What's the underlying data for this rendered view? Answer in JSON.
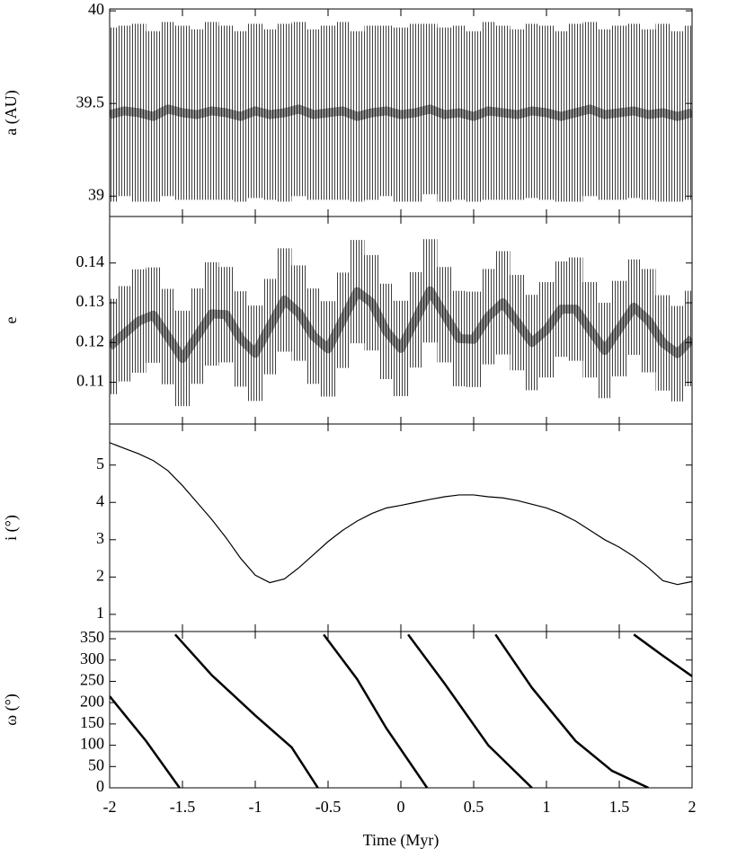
{
  "chart_data": [
    {
      "type": "errorbar",
      "ylabel": "a (AU)",
      "xlim": [
        -2,
        2
      ],
      "xticks": [
        -2,
        -1.5,
        -1,
        -0.5,
        0,
        0.5,
        1,
        1.5,
        2
      ],
      "ylim": [
        38.89,
        40.01
      ],
      "yticks": [
        39,
        39.5,
        40
      ],
      "series": [
        {
          "color": "#000000",
          "x": [
            -2,
            -1.9,
            -1.8,
            -1.7,
            -1.6,
            -1.5,
            -1.4,
            -1.3,
            -1.2,
            -1.1,
            -1,
            -0.9,
            -0.8,
            -0.7,
            -0.6,
            -0.5,
            -0.4,
            -0.3,
            -0.2,
            -0.1,
            0,
            0.1,
            0.2,
            0.3,
            0.4,
            0.5,
            0.6,
            0.7,
            0.8,
            0.9,
            1,
            1.1,
            1.2,
            1.3,
            1.4,
            1.5,
            1.6,
            1.7,
            1.8,
            1.9,
            2
          ],
          "values": [
            39.44,
            39.46,
            39.45,
            39.43,
            39.47,
            39.45,
            39.44,
            39.46,
            39.45,
            39.43,
            39.46,
            39.44,
            39.45,
            39.47,
            39.44,
            39.45,
            39.46,
            39.43,
            39.45,
            39.46,
            39.44,
            39.45,
            39.47,
            39.44,
            39.45,
            39.43,
            39.46,
            39.45,
            39.44,
            39.46,
            39.45,
            39.43,
            39.45,
            39.47,
            39.44,
            39.45,
            39.46,
            39.44,
            39.45,
            39.43,
            39.45
          ],
          "errors": [
            0.47,
            0.46,
            0.48,
            0.46,
            0.47,
            0.47,
            0.46,
            0.48,
            0.47,
            0.46,
            0.47,
            0.46,
            0.48,
            0.47,
            0.46,
            0.47,
            0.48,
            0.46,
            0.47,
            0.46,
            0.47,
            0.48,
            0.46,
            0.47,
            0.47,
            0.46,
            0.48,
            0.47,
            0.46,
            0.47,
            0.47,
            0.46,
            0.48,
            0.47,
            0.46,
            0.47,
            0.47,
            0.46,
            0.48,
            0.46,
            0.47
          ]
        }
      ]
    },
    {
      "type": "errorbar",
      "ylabel": "e",
      "xlim": [
        -2,
        2
      ],
      "xticks": [
        -2,
        -1.5,
        -1,
        -0.5,
        0,
        0.5,
        1,
        1.5,
        2
      ],
      "ylim": [
        0.0995,
        0.1517
      ],
      "yticks": [
        0.11,
        0.12,
        0.13,
        0.14
      ],
      "series": [
        {
          "color": "#000000",
          "x": [
            -2,
            -1.9,
            -1.8,
            -1.7,
            -1.6,
            -1.5,
            -1.4,
            -1.3,
            -1.2,
            -1.1,
            -1,
            -0.9,
            -0.8,
            -0.7,
            -0.6,
            -0.5,
            -0.4,
            -0.3,
            -0.2,
            -0.1,
            0,
            0.1,
            0.2,
            0.3,
            0.4,
            0.5,
            0.6,
            0.7,
            0.8,
            0.9,
            1,
            1.1,
            1.2,
            1.3,
            1.4,
            1.5,
            1.6,
            1.7,
            1.8,
            1.9,
            2
          ],
          "values": [
            0.119,
            0.1222,
            0.1254,
            0.1269,
            0.1215,
            0.116,
            0.1216,
            0.1272,
            0.127,
            0.1209,
            0.1173,
            0.124,
            0.1307,
            0.1274,
            0.1216,
            0.1184,
            0.1256,
            0.1328,
            0.13,
            0.1228,
            0.1185,
            0.1257,
            0.133,
            0.127,
            0.121,
            0.1208,
            0.1265,
            0.13,
            0.125,
            0.12,
            0.1232,
            0.1284,
            0.1284,
            0.1232,
            0.118,
            0.1235,
            0.1289,
            0.1255,
            0.1199,
            0.1172,
            0.121
          ],
          "errors": [
            0.012,
            0.012,
            0.013,
            0.012,
            0.012,
            0.012,
            0.012,
            0.013,
            0.012,
            0.012,
            0.012,
            0.012,
            0.013,
            0.012,
            0.012,
            0.012,
            0.012,
            0.013,
            0.012,
            0.012,
            0.012,
            0.012,
            0.013,
            0.012,
            0.012,
            0.012,
            0.012,
            0.013,
            0.012,
            0.012,
            0.012,
            0.012,
            0.013,
            0.012,
            0.012,
            0.012,
            0.012,
            0.013,
            0.012,
            0.012,
            0.012
          ]
        }
      ]
    },
    {
      "type": "line",
      "ylabel": "i (°)",
      "xlim": [
        -2,
        2
      ],
      "xticks": [
        -2,
        -1.5,
        -1,
        -0.5,
        0,
        0.5,
        1,
        1.5,
        2
      ],
      "ylim": [
        0.54,
        6.1
      ],
      "yticks": [
        1,
        2,
        3,
        4,
        5
      ],
      "series": [
        {
          "color": "#000000",
          "x": [
            -2,
            -1.9,
            -1.8,
            -1.7,
            -1.6,
            -1.5,
            -1.4,
            -1.3,
            -1.2,
            -1.1,
            -1,
            -0.9,
            -0.8,
            -0.7,
            -0.6,
            -0.5,
            -0.4,
            -0.3,
            -0.2,
            -0.1,
            0,
            0.1,
            0.2,
            0.3,
            0.4,
            0.5,
            0.6,
            0.7,
            0.8,
            0.9,
            1,
            1.1,
            1.2,
            1.3,
            1.4,
            1.5,
            1.6,
            1.7,
            1.8,
            1.9,
            2
          ],
          "values": [
            5.6,
            5.45,
            5.3,
            5.12,
            4.85,
            4.45,
            4,
            3.55,
            3.05,
            2.5,
            2.05,
            1.85,
            1.95,
            2.25,
            2.6,
            2.95,
            3.25,
            3.5,
            3.7,
            3.85,
            3.92,
            4,
            4.08,
            4.15,
            4.2,
            4.2,
            4.15,
            4.12,
            4.05,
            3.95,
            3.85,
            3.7,
            3.5,
            3.25,
            3,
            2.8,
            2.55,
            2.25,
            1.9,
            1.8,
            1.88
          ]
        }
      ]
    },
    {
      "type": "line",
      "ylabel": "ω (°)",
      "xlabel": "Time (Myr)",
      "xlim": [
        -2,
        2
      ],
      "xticks": [
        -2,
        -1.5,
        -1,
        -0.5,
        0,
        0.5,
        1,
        1.5,
        2
      ],
      "ylim": [
        0,
        367
      ],
      "yticks": [
        0,
        50,
        100,
        150,
        200,
        250,
        300,
        350
      ],
      "series": [
        {
          "color": "#000000",
          "x": [
            -2,
            -1.75,
            -1.52
          ],
          "values": [
            215,
            110,
            0
          ]
        },
        {
          "color": "#000000",
          "x": [
            -1.55,
            -1.3,
            -1,
            -0.75,
            -0.57
          ],
          "values": [
            360,
            265,
            170,
            95,
            0
          ]
        },
        {
          "color": "#000000",
          "x": [
            -0.53,
            -0.3,
            -0.1,
            0.18
          ],
          "values": [
            360,
            255,
            140,
            0
          ]
        },
        {
          "color": "#000000",
          "x": [
            0.05,
            0.3,
            0.6,
            0.9
          ],
          "values": [
            360,
            245,
            100,
            0
          ]
        },
        {
          "color": "#000000",
          "x": [
            0.65,
            0.9,
            1.2,
            1.45,
            1.7
          ],
          "values": [
            360,
            235,
            110,
            40,
            0
          ]
        },
        {
          "color": "#000000",
          "x": [
            1.6,
            1.8,
            2
          ],
          "values": [
            360,
            310,
            262
          ]
        }
      ]
    }
  ]
}
